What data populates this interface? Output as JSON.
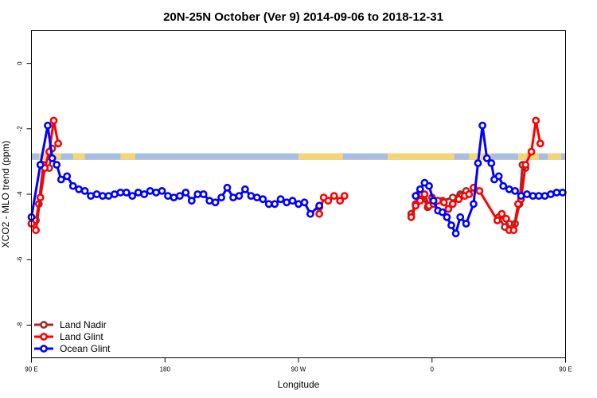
{
  "chart_data": {
    "type": "line",
    "title": "20N-25N October (Ver 9)   2014-09-06 to 2018-12-31",
    "xlabel": "Longitude",
    "ylabel": "XCO2 - MLO trend (ppm)",
    "xlim": [
      90,
      450
    ],
    "ylim": [
      -9,
      1
    ],
    "x_ticks": [
      {
        "value": 90,
        "label": "90 E"
      },
      {
        "value": 180,
        "label": "180"
      },
      {
        "value": 270,
        "label": "90 W"
      },
      {
        "value": 360,
        "label": "0"
      },
      {
        "value": 450,
        "label": "90 E"
      },
      {
        "value": 540,
        "label": "180"
      }
    ],
    "y_ticks": [
      0,
      -2,
      -4,
      -6,
      -8
    ],
    "legend_position": "bottom-left",
    "background_band": {
      "y_from": -2.75,
      "y_to": -2.95,
      "description": "world map strip"
    },
    "series": [
      {
        "name": "Land Nadir",
        "color": "#a52a2a",
        "points": [
          [
            90,
            -4.9
          ],
          [
            93,
            -4.8
          ],
          [
            95,
            -4.3
          ],
          [
            98,
            -3.1
          ],
          [
            102,
            -3.2
          ],
          [
            104,
            -2.6
          ],
          [
            284,
            -4.4
          ],
          [
            346,
            -4.6
          ],
          [
            349,
            -4.3
          ],
          [
            351,
            -4.0
          ],
          [
            353,
            -4.0
          ],
          [
            357,
            -4.4
          ],
          [
            360,
            -4.1
          ],
          [
            367,
            -4.2
          ],
          [
            374,
            -4.1
          ],
          [
            379,
            -4.0
          ],
          [
            380,
            -4.05
          ],
          [
            383,
            -3.9
          ],
          [
            405,
            -4.7
          ],
          [
            409,
            -5.0
          ],
          [
            412,
            -4.9
          ],
          [
            416,
            -4.9
          ],
          [
            419,
            -4.3
          ],
          [
            421,
            -3.1
          ],
          [
            423,
            -3.2
          ]
        ]
      },
      {
        "name": "Land Glint",
        "color": "#ff0000",
        "points": [
          [
            90,
            -4.9
          ],
          [
            93,
            -5.1
          ],
          [
            96,
            -4.1
          ],
          [
            99,
            -3.2
          ],
          [
            102,
            -2.7
          ],
          [
            105,
            -1.75
          ],
          [
            108,
            -2.45
          ],
          [
            284,
            -4.6
          ],
          [
            287,
            -4.1
          ],
          [
            290,
            -4.2
          ],
          [
            294,
            -4.05
          ],
          [
            298,
            -4.2
          ],
          [
            301,
            -4.05
          ],
          [
            346,
            -4.7
          ],
          [
            349,
            -4.35
          ],
          [
            352,
            -4.2
          ],
          [
            355,
            -4.0
          ],
          [
            358,
            -4.35
          ],
          [
            361,
            -4.3
          ],
          [
            364,
            -4.2
          ],
          [
            368,
            -4.25
          ],
          [
            371,
            -4.45
          ],
          [
            374,
            -4.3
          ],
          [
            378,
            -4.15
          ],
          [
            382,
            -4.05
          ],
          [
            385,
            -4.0
          ],
          [
            388,
            -3.8
          ],
          [
            392,
            -3.9
          ],
          [
            404,
            -4.8
          ],
          [
            407,
            -4.6
          ],
          [
            410,
            -4.75
          ],
          [
            412,
            -5.1
          ],
          [
            415,
            -5.1
          ],
          [
            418,
            -4.3
          ],
          [
            420,
            -4.15
          ],
          [
            423,
            -3.1
          ],
          [
            427,
            -2.7
          ],
          [
            430,
            -1.75
          ],
          [
            433,
            -2.45
          ]
        ]
      },
      {
        "name": "Ocean Glint",
        "color": "#0000ff",
        "points": [
          [
            90,
            -4.7
          ],
          [
            96,
            -3.1
          ],
          [
            101,
            -1.9
          ],
          [
            104,
            -2.9
          ],
          [
            107,
            -3.1
          ],
          [
            110,
            -3.55
          ],
          [
            114,
            -3.45
          ],
          [
            118,
            -3.75
          ],
          [
            122,
            -3.85
          ],
          [
            126,
            -3.9
          ],
          [
            130,
            -4.05
          ],
          [
            134,
            -4.0
          ],
          [
            138,
            -4.05
          ],
          [
            142,
            -4.05
          ],
          [
            146,
            -4.0
          ],
          [
            150,
            -3.95
          ],
          [
            154,
            -3.95
          ],
          [
            158,
            -4.05
          ],
          [
            162,
            -3.95
          ],
          [
            166,
            -4.0
          ],
          [
            170,
            -3.9
          ],
          [
            174,
            -3.95
          ],
          [
            178,
            -3.9
          ],
          [
            182,
            -4.05
          ],
          [
            186,
            -4.1
          ],
          [
            190,
            -4.05
          ],
          [
            194,
            -3.95
          ],
          [
            198,
            -4.2
          ],
          [
            202,
            -4.0
          ],
          [
            206,
            -4.0
          ],
          [
            210,
            -4.2
          ],
          [
            214,
            -4.25
          ],
          [
            218,
            -4.1
          ],
          [
            222,
            -3.8
          ],
          [
            226,
            -4.1
          ],
          [
            230,
            -4.05
          ],
          [
            234,
            -3.85
          ],
          [
            238,
            -4.05
          ],
          [
            242,
            -4.1
          ],
          [
            246,
            -4.15
          ],
          [
            250,
            -4.3
          ],
          [
            254,
            -4.3
          ],
          [
            258,
            -4.15
          ],
          [
            262,
            -4.25
          ],
          [
            266,
            -4.2
          ],
          [
            270,
            -4.3
          ],
          [
            274,
            -4.25
          ],
          [
            278,
            -4.6
          ],
          [
            284,
            -4.35
          ],
          [
            349,
            -4.05
          ],
          [
            352,
            -3.85
          ],
          [
            355,
            -3.65
          ],
          [
            358,
            -3.75
          ],
          [
            361,
            -4.2
          ],
          [
            364,
            -4.5
          ],
          [
            367,
            -4.55
          ],
          [
            370,
            -4.7
          ],
          [
            373,
            -4.95
          ],
          [
            376,
            -5.2
          ],
          [
            379,
            -4.7
          ],
          [
            383,
            -4.9
          ],
          [
            388,
            -4.3
          ],
          [
            391,
            -3.05
          ],
          [
            394,
            -1.9
          ],
          [
            397,
            -2.9
          ],
          [
            400,
            -3.05
          ],
          [
            402,
            -3.55
          ],
          [
            405,
            -3.45
          ],
          [
            408,
            -3.75
          ],
          [
            412,
            -3.85
          ],
          [
            416,
            -3.9
          ],
          [
            420,
            -4.05
          ],
          [
            424,
            -4.0
          ],
          [
            428,
            -4.05
          ],
          [
            432,
            -4.05
          ],
          [
            436,
            -4.05
          ],
          [
            440,
            -4.0
          ],
          [
            444,
            -3.95
          ],
          [
            448,
            -3.95
          ]
        ]
      }
    ]
  }
}
